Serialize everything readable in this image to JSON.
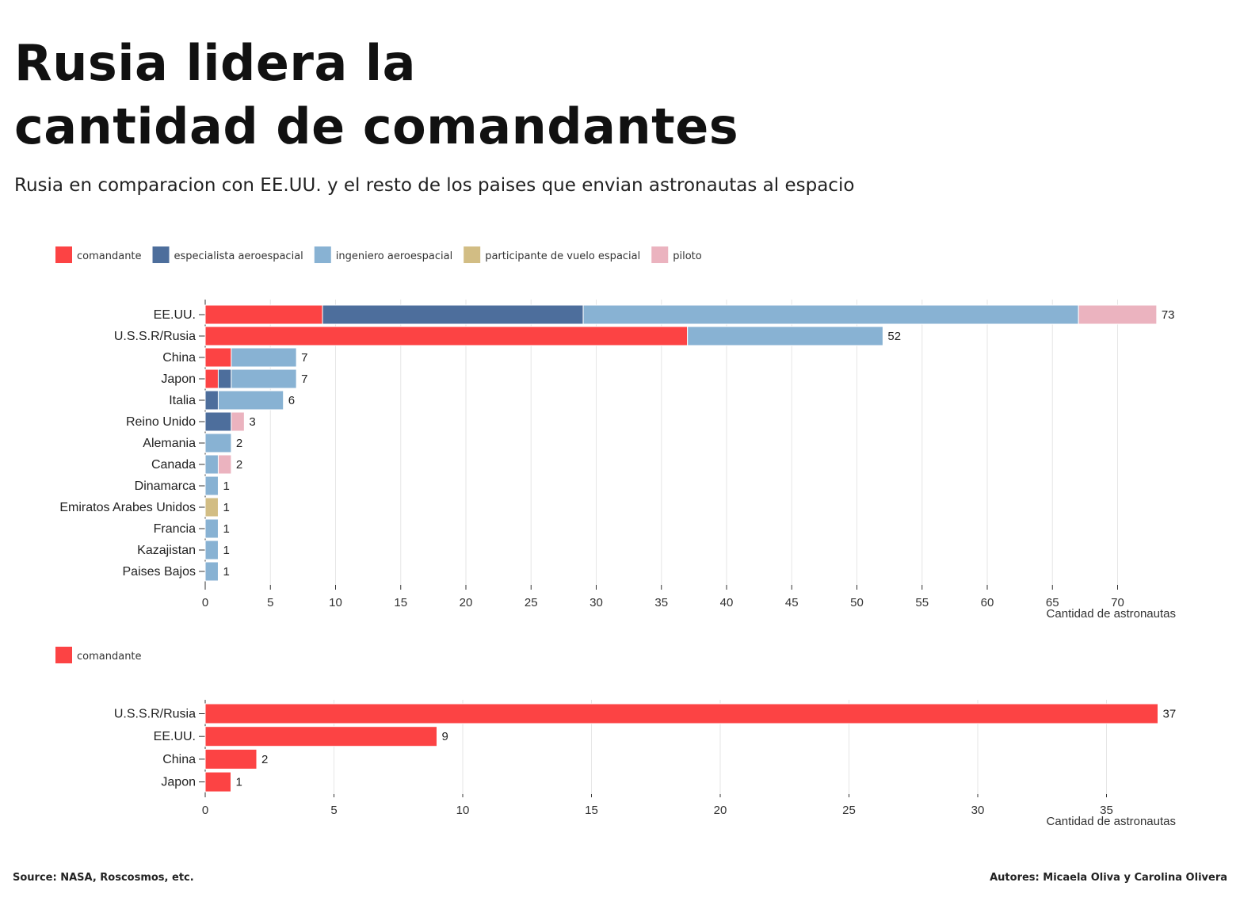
{
  "title_line1": "Rusia lidera la",
  "title_line2": "cantidad de comandantes",
  "subtitle": "Rusia en comparacion con EE.UU. y el resto de los paises que envian astronautas al espacio",
  "source": "Source: NASA, Roscosmos, etc.",
  "authors": "Autores: Micaela Oliva y Carolina Olivera",
  "colors": {
    "comandante": "#fc4344",
    "especialista aeroespacial": "#4d6e9c",
    "ingeniero aeroespacial": "#88b2d3",
    "participante de vuelo espacial": "#d2bd84",
    "piloto": "#ebb3bf"
  },
  "chart_data": [
    {
      "type": "bar",
      "orientation": "horizontal",
      "stacked": true,
      "legend": [
        "comandante",
        "especialista aeroespacial",
        "ingeniero aeroespacial",
        "participante de vuelo espacial",
        "piloto"
      ],
      "legend_position": "top-left",
      "xlabel": "Cantidad de astronautas",
      "xlim": [
        0,
        73
      ],
      "xticks": [
        0,
        5,
        10,
        15,
        20,
        25,
        30,
        35,
        40,
        45,
        50,
        55,
        60,
        65,
        70
      ],
      "grid": "vertical",
      "categories": [
        "EE.UU.",
        "U.S.S.R/Rusia",
        "China",
        "Japon",
        "Italia",
        "Reino Unido",
        "Alemania",
        "Canada",
        "Dinamarca",
        "Emiratos Arabes Unidos",
        "Francia",
        "Kazajistan",
        "Paises Bajos"
      ],
      "series": [
        {
          "name": "comandante",
          "values": [
            9,
            37,
            2,
            1,
            0,
            0,
            0,
            0,
            0,
            0,
            0,
            0,
            0
          ]
        },
        {
          "name": "especialista aeroespacial",
          "values": [
            20,
            0,
            0,
            1,
            1,
            2,
            0,
            0,
            0,
            0,
            0,
            0,
            0
          ]
        },
        {
          "name": "ingeniero aeroespacial",
          "values": [
            38,
            15,
            5,
            5,
            5,
            0,
            2,
            1,
            1,
            0,
            1,
            1,
            1
          ]
        },
        {
          "name": "participante de vuelo espacial",
          "values": [
            0,
            0,
            0,
            0,
            0,
            0,
            0,
            0,
            0,
            1,
            0,
            0,
            0
          ]
        },
        {
          "name": "piloto",
          "values": [
            6,
            0,
            0,
            0,
            0,
            1,
            0,
            1,
            0,
            0,
            0,
            0,
            0
          ]
        }
      ],
      "totals": [
        73,
        52,
        7,
        7,
        6,
        3,
        2,
        2,
        1,
        1,
        1,
        1,
        1
      ]
    },
    {
      "type": "bar",
      "orientation": "horizontal",
      "legend": [
        "comandante"
      ],
      "legend_position": "top-left",
      "xlabel": "Cantidad de astronautas",
      "xlim": [
        0,
        37
      ],
      "xticks": [
        0,
        5,
        10,
        15,
        20,
        25,
        30,
        35
      ],
      "grid": "vertical",
      "categories": [
        "U.S.S.R/Rusia",
        "EE.UU.",
        "China",
        "Japon"
      ],
      "series": [
        {
          "name": "comandante",
          "values": [
            37,
            9,
            2,
            1
          ]
        }
      ],
      "totals": [
        37,
        9,
        2,
        1
      ]
    }
  ]
}
